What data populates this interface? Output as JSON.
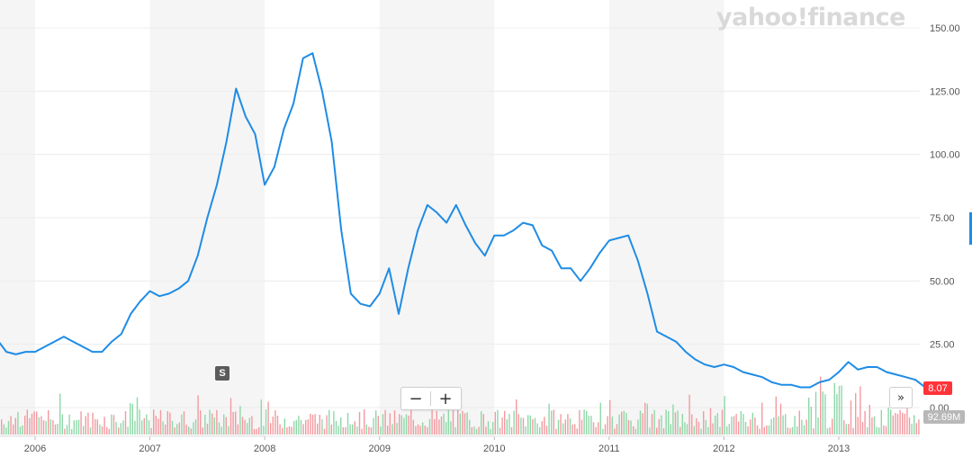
{
  "watermark": "yahoo!finance",
  "colors": {
    "line": "#1e8ce6",
    "up_volume": "#8ed8a8",
    "down_volume": "#f39aa0",
    "band": "#f5f5f5",
    "price_tag": "#ff333a",
    "volume_tag": "#b8b8b8"
  },
  "controls": {
    "zoom_out": "−",
    "zoom_in": "+",
    "scroll_right": "»",
    "event_marker": "S"
  },
  "labels": {
    "last_price": "8.07",
    "last_volume": "92.69M"
  },
  "chart_data": {
    "type": "line",
    "x_ticks": [
      "2006",
      "2007",
      "2008",
      "2009",
      "2010",
      "2011",
      "2012",
      "2013"
    ],
    "y_ticks": [
      "0.00",
      "25.00",
      "50.00",
      "75.00",
      "100.00",
      "125.00",
      "150.00"
    ],
    "ylim": [
      0,
      150
    ],
    "xlim": [
      "2005-09",
      "2013-10"
    ],
    "grid": true,
    "series": [
      {
        "x": [
          "2005-09",
          "2005-10",
          "2005-11",
          "2005-12",
          "2006-01",
          "2006-02",
          "2006-03",
          "2006-04",
          "2006-05",
          "2006-06",
          "2006-07",
          "2006-08",
          "2006-09",
          "2006-10",
          "2006-11",
          "2006-12",
          "2007-01",
          "2007-02",
          "2007-03",
          "2007-04",
          "2007-05",
          "2007-06",
          "2007-07",
          "2007-08",
          "2007-09",
          "2007-10",
          "2007-11",
          "2007-12",
          "2008-01",
          "2008-02",
          "2008-03",
          "2008-04",
          "2008-05",
          "2008-06",
          "2008-07",
          "2008-08",
          "2008-09",
          "2008-10",
          "2008-11",
          "2008-12",
          "2009-01",
          "2009-02",
          "2009-03",
          "2009-04",
          "2009-05",
          "2009-06",
          "2009-07",
          "2009-08",
          "2009-09",
          "2009-10",
          "2009-11",
          "2009-12",
          "2010-01",
          "2010-02",
          "2010-03",
          "2010-04",
          "2010-05",
          "2010-06",
          "2010-07",
          "2010-08",
          "2010-09",
          "2010-10",
          "2010-11",
          "2010-12",
          "2011-01",
          "2011-02",
          "2011-03",
          "2011-04",
          "2011-05",
          "2011-06",
          "2011-07",
          "2011-08",
          "2011-09",
          "2011-10",
          "2011-11",
          "2011-12",
          "2012-01",
          "2012-02",
          "2012-03",
          "2012-04",
          "2012-05",
          "2012-06",
          "2012-07",
          "2012-08",
          "2012-09",
          "2012-10",
          "2012-11",
          "2012-12",
          "2013-01",
          "2013-02",
          "2013-03",
          "2013-04",
          "2013-05",
          "2013-06",
          "2013-07",
          "2013-08",
          "2013-09",
          "2013-10"
        ],
        "y": [
          27,
          22,
          21,
          22,
          22,
          24,
          26,
          28,
          26,
          24,
          22,
          22,
          26,
          29,
          37,
          42,
          46,
          44,
          45,
          47,
          50,
          60,
          75,
          88,
          105,
          126,
          115,
          108,
          88,
          95,
          110,
          120,
          138,
          140,
          125,
          105,
          70,
          45,
          41,
          40,
          45,
          55,
          37,
          55,
          70,
          80,
          77,
          73,
          80,
          72,
          65,
          60,
          68,
          68,
          70,
          73,
          72,
          64,
          62,
          55,
          55,
          50,
          55,
          61,
          66,
          67,
          68,
          58,
          45,
          30,
          28,
          26,
          22,
          19,
          17,
          16,
          17,
          16,
          14,
          13,
          12,
          10,
          9,
          9,
          8,
          8,
          10,
          11,
          14,
          18,
          15,
          16,
          16,
          14,
          13,
          12,
          11,
          8.07
        ]
      }
    ],
    "volume": {
      "label": "92.69M"
    }
  }
}
